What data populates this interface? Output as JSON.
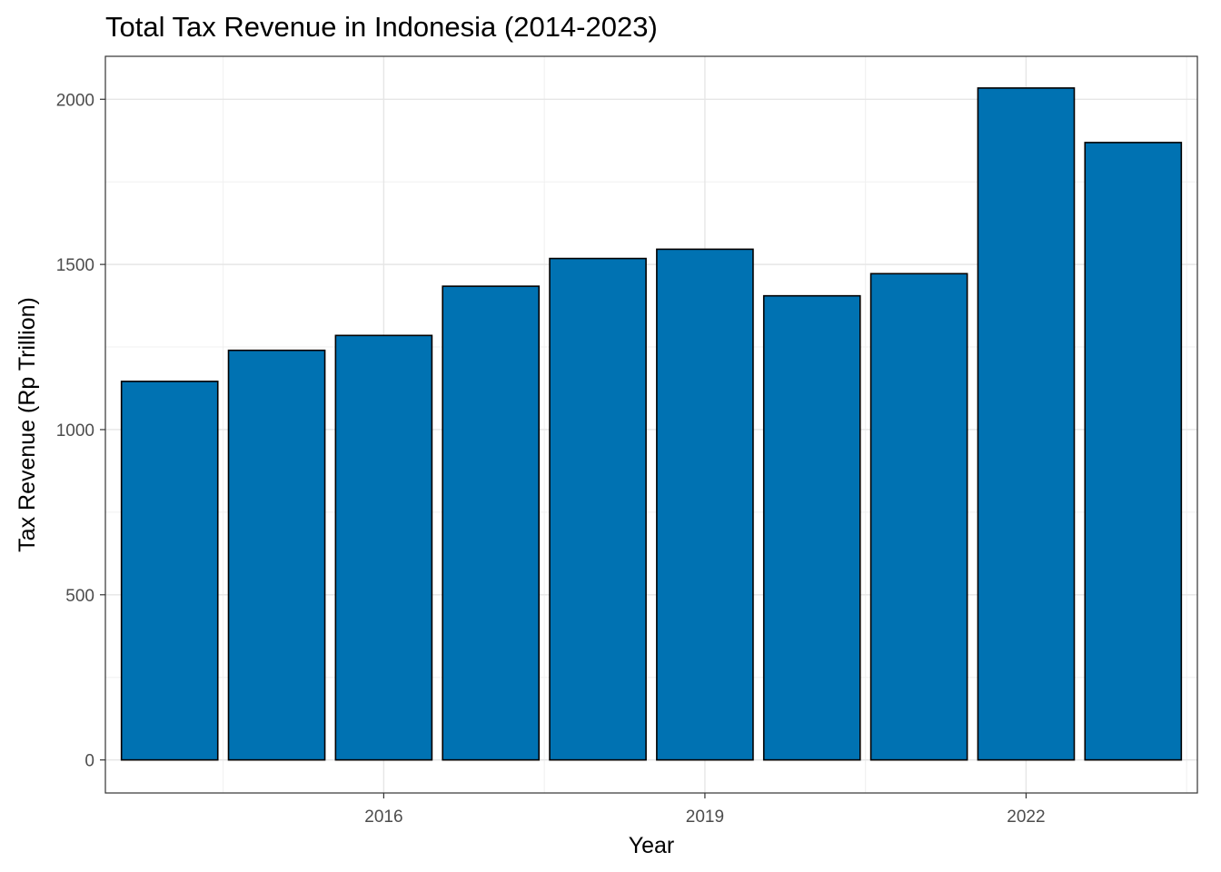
{
  "chart_data": {
    "type": "bar",
    "title": "Total Tax Revenue in Indonesia (2014-2023)",
    "xlabel": "Year",
    "ylabel": "Tax Revenue (Rp Trillion)",
    "x": [
      2014,
      2015,
      2016,
      2017,
      2018,
      2019,
      2020,
      2021,
      2022,
      2023
    ],
    "values": [
      1146,
      1240,
      1285,
      1434,
      1518,
      1546,
      1405,
      1472,
      2034,
      1869
    ],
    "xlim": [
      2013.4,
      2023.6
    ],
    "ylim": [
      -100,
      2130
    ],
    "x_ticks": [
      2016,
      2019,
      2022
    ],
    "y_ticks": [
      0,
      500,
      1000,
      1500,
      2000
    ],
    "bar_color": "#0072B2",
    "bar_outline": "#000000",
    "grid": true,
    "legend": "none"
  }
}
